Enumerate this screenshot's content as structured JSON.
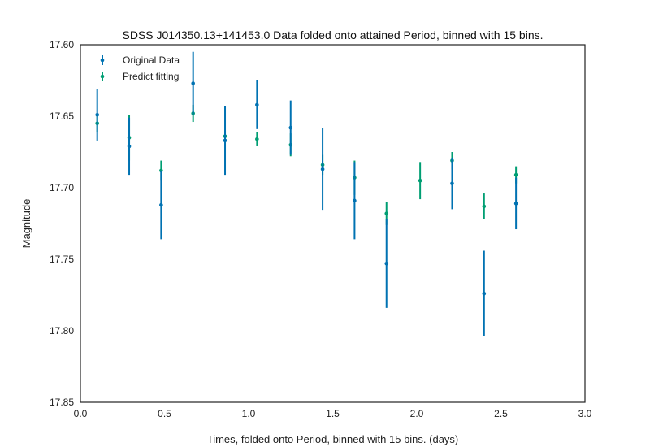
{
  "chart_data": {
    "type": "scatter",
    "title": "SDSS J014350.13+141453.0 Data folded onto attained Period, binned with 15 bins.",
    "xlabel": "Times, folded onto Period, binned with 15 bins. (days)",
    "ylabel": "Magnitude",
    "xlim": [
      0.0,
      3.0
    ],
    "ylim": [
      17.85,
      17.6
    ],
    "y_inverted": true,
    "xticks": [
      "0.0",
      "0.5",
      "1.0",
      "1.5",
      "2.0",
      "2.5",
      "3.0"
    ],
    "yticks": [
      "17.60",
      "17.65",
      "17.70",
      "17.75",
      "17.80",
      "17.85"
    ],
    "grid": false,
    "legend_position": "top-left",
    "series": [
      {
        "name": "Original Data",
        "color": "#0072b2",
        "x": [
          0.1,
          0.29,
          0.48,
          0.67,
          0.86,
          1.05,
          1.25,
          1.44,
          1.63,
          1.82,
          2.21,
          2.4,
          2.59
        ],
        "y": [
          17.649,
          17.671,
          17.712,
          17.627,
          17.667,
          17.642,
          17.658,
          17.687,
          17.709,
          17.753,
          17.697,
          17.774,
          17.711
        ],
        "err": [
          0.018,
          0.02,
          0.024,
          0.022,
          0.024,
          0.017,
          0.019,
          0.029,
          0.027,
          0.031,
          0.018,
          0.03,
          0.018
        ]
      },
      {
        "name": "Predict fitting",
        "color": "#009e73",
        "x": [
          0.1,
          0.29,
          0.48,
          0.67,
          0.86,
          1.05,
          1.25,
          1.44,
          1.63,
          1.82,
          2.02,
          2.21,
          2.4,
          2.59
        ],
        "y": [
          17.655,
          17.665,
          17.688,
          17.648,
          17.664,
          17.666,
          17.67,
          17.684,
          17.693,
          17.718,
          17.695,
          17.681,
          17.713,
          17.691
        ],
        "err": [
          0.006,
          0.016,
          0.007,
          0.006,
          0.004,
          0.005,
          0.008,
          0.007,
          0.012,
          0.008,
          0.013,
          0.006,
          0.009,
          0.006
        ]
      }
    ]
  }
}
